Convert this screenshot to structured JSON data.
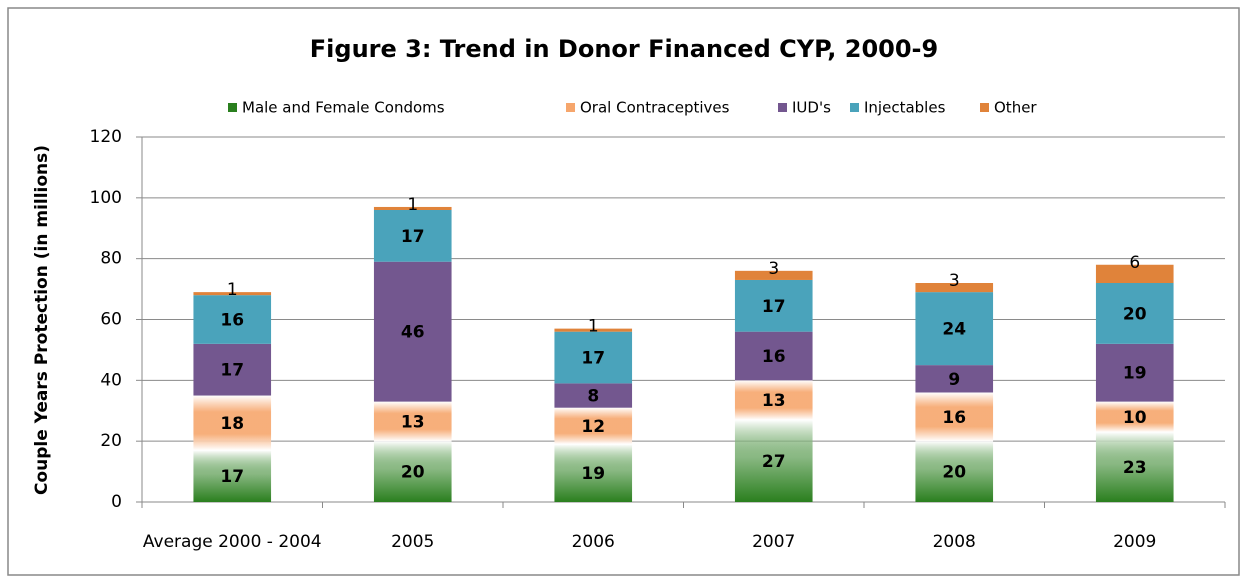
{
  "chart_data": {
    "type": "stacked_bar",
    "title": "Figure 3: Trend in Donor Financed CYP, 2000-9",
    "y_label": "Couple Years Protection (in millions)",
    "categories": [
      "Average 2000 - 2004",
      "2005",
      "2006",
      "2007",
      "2008",
      "2009"
    ],
    "series": [
      {
        "name": "Male and Female Condoms",
        "color": "#2a7f1e",
        "values": [
          17,
          20,
          19,
          27,
          20,
          23
        ]
      },
      {
        "name": "Oral Contraceptives",
        "color": "#f6a66c",
        "values": [
          18,
          13,
          12,
          13,
          16,
          10
        ]
      },
      {
        "name": "IUD's",
        "color": "#73578f",
        "values": [
          17,
          46,
          8,
          16,
          9,
          19
        ]
      },
      {
        "name": "Injectables",
        "color": "#4aa3bb",
        "values": [
          16,
          17,
          17,
          17,
          24,
          20
        ]
      },
      {
        "name": "Other",
        "color": "#e0833a",
        "values": [
          1,
          1,
          1,
          3,
          3,
          6
        ]
      }
    ],
    "ylim": [
      0,
      120
    ],
    "yticks": [
      0,
      20,
      40,
      60,
      80,
      100,
      120
    ],
    "grid": true,
    "legend": "top"
  }
}
